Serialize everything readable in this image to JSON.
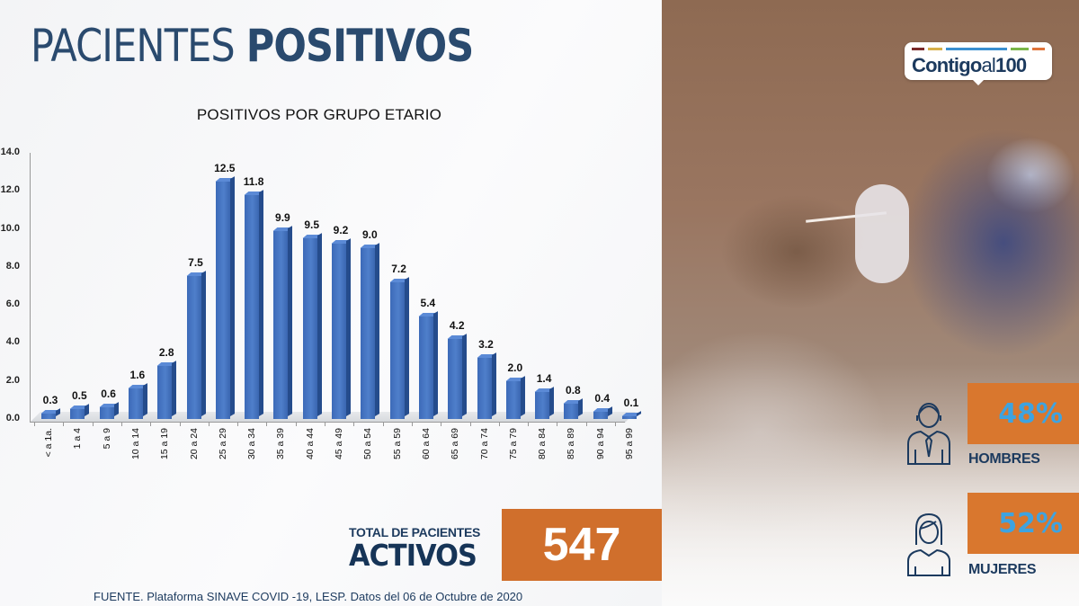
{
  "header": {
    "title_light": "PACIENTES",
    "title_bold": "POSITIVOS"
  },
  "chart_data": {
    "type": "bar",
    "title": "POSITIVOS POR GRUPO ETARIO",
    "xlabel": "",
    "ylabel": "",
    "ylim": [
      0,
      14
    ],
    "y_ticks": [
      "0.0",
      "2.0",
      "4.0",
      "6.0",
      "8.0",
      "10.0",
      "12.0",
      "14.0"
    ],
    "grid": false,
    "style": "3d-column",
    "bar_color": "#4a78c2",
    "categories": [
      "< a 1a.",
      "1 a 4",
      "5 a 9",
      "10 a 14",
      "15 a 19",
      "20 a 24",
      "25 a 29",
      "30 a 34",
      "35 a 39",
      "40 a 44",
      "45 a 49",
      "50 a 54",
      "55 a 59",
      "60 a 64",
      "65 a 69",
      "70 a 74",
      "75 a 79",
      "80 a 84",
      "85 a 89",
      "90 a 94",
      "95 a 99"
    ],
    "values": [
      0.3,
      0.5,
      0.6,
      1.6,
      2.8,
      7.5,
      12.5,
      11.8,
      9.9,
      9.5,
      9.2,
      9.0,
      7.2,
      5.4,
      4.2,
      3.2,
      2.0,
      1.4,
      0.8,
      0.4,
      0.1
    ],
    "value_labels": [
      "0.3",
      "0.5",
      "0.6",
      "1.6",
      "2.8",
      "7.5",
      "12.5",
      "11.8",
      "9.9",
      "9.5",
      "9.2",
      "9.0",
      "7.2",
      "5.4",
      "4.2",
      "3.2",
      "2.0",
      "1.4",
      "0.8",
      "0.4",
      "0.1"
    ]
  },
  "total": {
    "caption": "TOTAL DE PACIENTES",
    "label": "ACTIVOS",
    "value": "547",
    "box_color": "#d06f2c"
  },
  "source": "FUENTE. Plataforma SINAVE COVID -19, LESP. Datos del 06 de Octubre de 2020",
  "logo": {
    "text_main": "Contigo",
    "text_al": "al",
    "text_num": "100",
    "stripe_colors": [
      "#7a2a2a",
      "#d8b04a",
      "#3a8fd0",
      "#7ab648",
      "#e0743a"
    ]
  },
  "gender": [
    {
      "label": "HOMBRES",
      "percent": "48%",
      "icon": "man-icon"
    },
    {
      "label": "MUJERES",
      "percent": "52%",
      "icon": "woman-icon"
    }
  ],
  "colors": {
    "title": "#2a4a6e",
    "accent_orange": "#d9772e",
    "percent_blue": "#3ea3e0"
  }
}
